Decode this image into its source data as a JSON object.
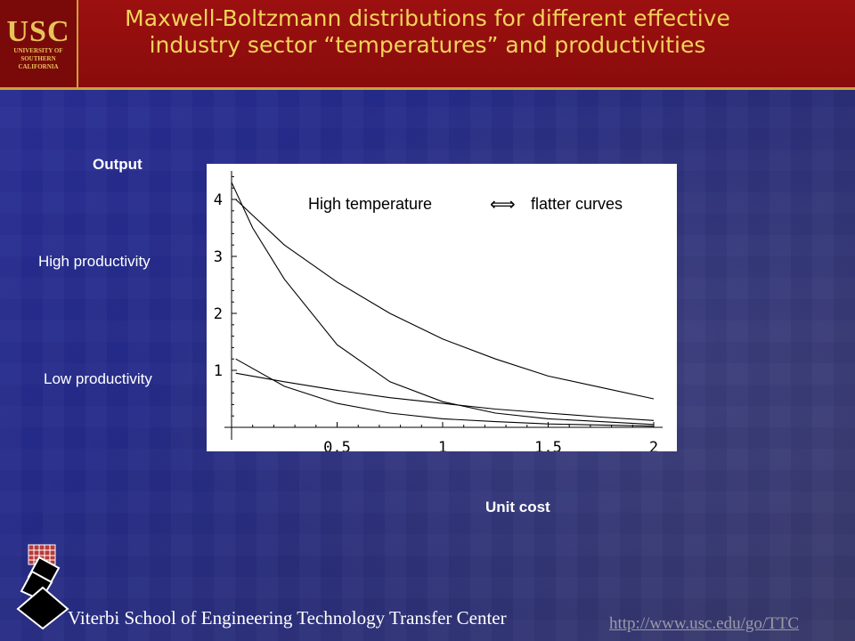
{
  "header": {
    "logo_text": "USC",
    "logo_sub": "UNIVERSITY OF SOUTHERN CALIFORNIA",
    "title_line1": "Maxwell-Boltzmann distributions for different effective",
    "title_line2": "industry sector “temperatures” and productivities"
  },
  "labels": {
    "output": "Output",
    "high_productivity": "High productivity",
    "low_productivity": "Low productivity",
    "unit_cost": "Unit cost"
  },
  "annotation": {
    "left": "High temperature",
    "arrow": "⟺",
    "right": "flatter curves"
  },
  "footer": {
    "org": "Viterbi School of Engineering Technology Transfer Center",
    "url": "http://www.usc.edu/go/TTC"
  },
  "colors": {
    "header": "#9c1010",
    "title": "#f2d35a",
    "accent_gold": "#c9a23a"
  },
  "chart_data": {
    "type": "line",
    "xlim": [
      0,
      2
    ],
    "ylim": [
      0,
      4.5
    ],
    "x_ticks": [
      "0.5",
      "1",
      "1.5",
      "2"
    ],
    "y_ticks": [
      "1",
      "2",
      "3",
      "4"
    ],
    "series": [
      {
        "x": [
          0.02,
          0.25,
          0.5,
          0.75,
          1.0,
          1.25,
          1.5,
          1.75,
          2.0
        ],
        "y": [
          4.0,
          3.2,
          2.55,
          2.0,
          1.55,
          1.2,
          0.9,
          0.7,
          0.5
        ]
      },
      {
        "x": [
          0.0,
          0.1,
          0.25,
          0.5,
          0.75,
          1.0,
          1.25,
          1.5,
          1.75,
          2.0
        ],
        "y": [
          4.3,
          3.5,
          2.6,
          1.45,
          0.8,
          0.45,
          0.25,
          0.15,
          0.1,
          0.05
        ]
      },
      {
        "x": [
          0.02,
          0.25,
          0.5,
          0.75,
          1.0,
          1.25,
          1.5,
          1.75,
          2.0
        ],
        "y": [
          0.95,
          0.8,
          0.65,
          0.52,
          0.42,
          0.32,
          0.25,
          0.18,
          0.12
        ]
      },
      {
        "x": [
          0.02,
          0.25,
          0.5,
          0.75,
          1.0,
          1.25,
          1.5,
          1.75,
          2.0
        ],
        "y": [
          1.2,
          0.72,
          0.42,
          0.25,
          0.15,
          0.1,
          0.06,
          0.04,
          0.02
        ]
      }
    ]
  }
}
